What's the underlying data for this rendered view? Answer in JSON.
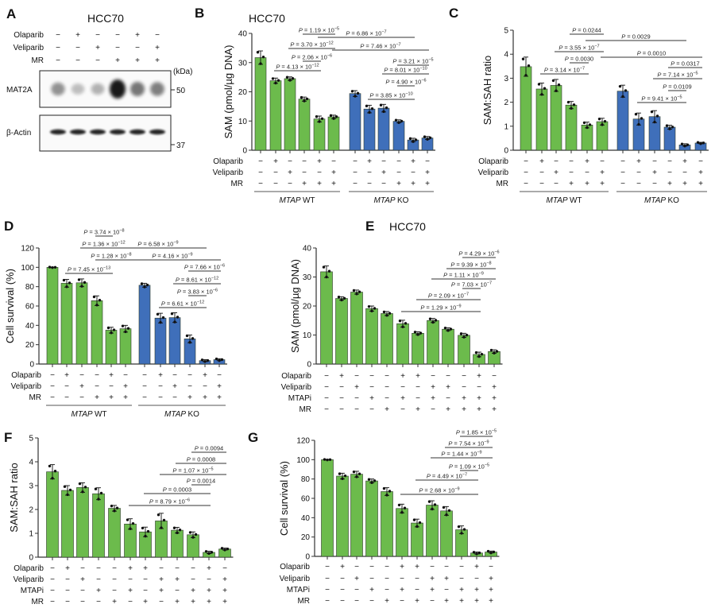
{
  "blot": {
    "panel": "A",
    "title": "HCC70",
    "rows": [
      {
        "label": "Olaparib",
        "values": [
          "−",
          "+",
          "−",
          "−",
          "+",
          "−"
        ]
      },
      {
        "label": "Veliparib",
        "values": [
          "−",
          "−",
          "+",
          "−",
          "−",
          "+"
        ]
      },
      {
        "label": "MR",
        "values": [
          "−",
          "−",
          "−",
          "+",
          "+",
          "+"
        ]
      }
    ],
    "unit": "(kDa)",
    "blots": [
      {
        "label": "MAT2A",
        "marker": "50"
      },
      {
        "label": "β-Actin",
        "marker": "37"
      }
    ]
  },
  "chart_data": [
    {
      "panel": "B",
      "type": "bar",
      "title": "HCC70",
      "ylabel": "SAM (pmol/µg DNA)",
      "ylim": [
        0,
        40
      ],
      "yticks": [
        "0",
        "10",
        "20",
        "30",
        "40"
      ],
      "p_symbol": "P",
      "colors": {
        "WT": "#6cbb4c",
        "KO": "#3f6fba"
      },
      "values": [
        31.7,
        23.8,
        24.5,
        17.5,
        10.7,
        11.4,
        19.4,
        14.1,
        14.4,
        9.9,
        3.5,
        4.2
      ],
      "sd": [
        2.3,
        0.9,
        0.6,
        0.7,
        1.0,
        0.6,
        1.0,
        1.3,
        1.3,
        0.5,
        0.6,
        0.5
      ],
      "series_of_bar": [
        "WT",
        "WT",
        "WT",
        "WT",
        "WT",
        "WT",
        "KO",
        "KO",
        "KO",
        "KO",
        "KO",
        "KO"
      ],
      "rows": [
        {
          "label": "Olaparib",
          "values": [
            "−",
            "+",
            "−",
            "−",
            "+",
            "−",
            "−",
            "+",
            "−",
            "−",
            "+",
            "−"
          ]
        },
        {
          "label": "Veliparib",
          "values": [
            "−",
            "−",
            "+",
            "−",
            "−",
            "+",
            "−",
            "−",
            "+",
            "−",
            "−",
            "+"
          ]
        },
        {
          "label": "MR",
          "values": [
            "−",
            "−",
            "−",
            "+",
            "+",
            "+",
            "−",
            "−",
            "−",
            "+",
            "+",
            "+"
          ]
        }
      ],
      "groups": [
        {
          "gene": "MTAP",
          "label": "WT",
          "from": 0,
          "to": 5
        },
        {
          "gene": "MTAP",
          "label": "KO",
          "from": 6,
          "to": 11
        }
      ],
      "comparisons": [
        {
          "from": 3,
          "to": 5,
          "value": "= 1.19 × 10",
          "exp": "−5"
        },
        {
          "from": 4,
          "to": 10,
          "value": "= 6.86 × 10",
          "exp": "−7"
        },
        {
          "from": 2,
          "to": 5,
          "value": "= 3.70 × 10",
          "exp": "−12"
        },
        {
          "from": 5,
          "to": 11,
          "value": "= 7.46 × 10",
          "exp": "−7"
        },
        {
          "from": 3,
          "to": 4,
          "value": "= 2.06 × 10",
          "exp": "−6"
        },
        {
          "from": 1,
          "to": 4,
          "value": "= 4.13 × 10",
          "exp": "−12"
        },
        {
          "from": 9,
          "to": 11,
          "value": "= 3.21 × 10",
          "exp": "−5"
        },
        {
          "from": 8,
          "to": 11,
          "value": "= 8.01 × 10",
          "exp": "−10"
        },
        {
          "from": 9,
          "to": 10,
          "value": "= 4.90 × 10",
          "exp": "−6"
        },
        {
          "from": 7,
          "to": 10,
          "value": "= 3.85 × 10",
          "exp": "−10"
        }
      ]
    },
    {
      "panel": "C",
      "type": "bar",
      "title": "",
      "ylabel": "SAM:SAH ratio",
      "ylim": [
        0,
        5
      ],
      "yticks": [
        "0",
        "1",
        "2",
        "3",
        "4",
        "5"
      ],
      "p_symbol": "P",
      "colors": {
        "WT": "#6cbb4c",
        "KO": "#3f6fba"
      },
      "values": [
        3.48,
        2.55,
        2.7,
        1.88,
        1.05,
        1.19,
        2.46,
        1.3,
        1.4,
        0.96,
        0.22,
        0.3
      ],
      "sd": [
        0.4,
        0.25,
        0.25,
        0.15,
        0.12,
        0.14,
        0.25,
        0.25,
        0.25,
        0.08,
        0.05,
        0.03
      ],
      "series_of_bar": [
        "WT",
        "WT",
        "WT",
        "WT",
        "WT",
        "WT",
        "KO",
        "KO",
        "KO",
        "KO",
        "KO",
        "KO"
      ],
      "rows": [
        {
          "label": "Olaparib",
          "values": [
            "−",
            "+",
            "−",
            "−",
            "+",
            "−",
            "−",
            "+",
            "−",
            "−",
            "+",
            "−"
          ]
        },
        {
          "label": "Veliparib",
          "values": [
            "−",
            "−",
            "+",
            "−",
            "−",
            "+",
            "−",
            "−",
            "+",
            "−",
            "−",
            "+"
          ]
        },
        {
          "label": "MR",
          "values": [
            "−",
            "−",
            "−",
            "+",
            "+",
            "+",
            "−",
            "−",
            "−",
            "+",
            "+",
            "+"
          ]
        }
      ],
      "groups": [
        {
          "gene": "MTAP",
          "label": "WT",
          "from": 0,
          "to": 5
        },
        {
          "gene": "MTAP",
          "label": "KO",
          "from": 6,
          "to": 11
        }
      ],
      "comparisons": [
        {
          "from": 3,
          "to": 5,
          "value": "= 0.0244",
          "exp": ""
        },
        {
          "from": 4,
          "to": 10,
          "value": "= 0.0029",
          "exp": ""
        },
        {
          "from": 2,
          "to": 5,
          "value": "= 3.55 × 10",
          "exp": "−7"
        },
        {
          "from": 5,
          "to": 11,
          "value": "= 0.0010",
          "exp": ""
        },
        {
          "from": 3,
          "to": 4,
          "value": "= 0.0030",
          "exp": ""
        },
        {
          "from": 1,
          "to": 4,
          "value": "= 3.14 × 10",
          "exp": "−7"
        },
        {
          "from": 9,
          "to": 11,
          "value": "= 0.0317",
          "exp": ""
        },
        {
          "from": 8,
          "to": 11,
          "value": "= 7.14 × 10",
          "exp": "−5"
        },
        {
          "from": 9,
          "to": 10,
          "value": "= 0.0109",
          "exp": ""
        },
        {
          "from": 7,
          "to": 10,
          "value": "= 9.41 × 10",
          "exp": "−5"
        }
      ]
    },
    {
      "panel": "D",
      "type": "bar",
      "title": "",
      "ylabel": "Cell survival (%)",
      "ylim": [
        0,
        120
      ],
      "yticks": [
        "0",
        "20",
        "40",
        "60",
        "80",
        "100",
        "120"
      ],
      "p_symbol": "P",
      "colors": {
        "WT": "#6cbb4c",
        "KO": "#3f6fba"
      },
      "values": [
        100,
        83.5,
        84,
        65.5,
        35,
        36.5,
        81.5,
        47.5,
        48,
        26,
        3.5,
        4.5
      ],
      "sd": [
        0.3,
        4,
        4,
        5,
        3,
        3.5,
        2,
        5,
        5,
        4,
        1,
        1
      ],
      "series_of_bar": [
        "WT",
        "WT",
        "WT",
        "WT",
        "WT",
        "WT",
        "KO",
        "KO",
        "KO",
        "KO",
        "KO",
        "KO"
      ],
      "rows": [
        {
          "label": "Olaparib",
          "values": [
            "−",
            "+",
            "−",
            "−",
            "+",
            "−",
            "−",
            "+",
            "−",
            "−",
            "+",
            "−"
          ]
        },
        {
          "label": "Veliparib",
          "values": [
            "−",
            "−",
            "+",
            "−",
            "−",
            "+",
            "−",
            "−",
            "+",
            "−",
            "−",
            "+"
          ]
        },
        {
          "label": "MR",
          "values": [
            "−",
            "−",
            "−",
            "+",
            "+",
            "+",
            "−",
            "−",
            "−",
            "+",
            "+",
            "+"
          ]
        }
      ],
      "groups": [
        {
          "gene": "MTAP",
          "label": "WT",
          "from": 0,
          "to": 5
        },
        {
          "gene": "MTAP",
          "label": "KO",
          "from": 6,
          "to": 11
        }
      ],
      "comparisons": [
        {
          "from": 3,
          "to": 4,
          "value": "= 3.74 × 10",
          "exp": "−8"
        },
        {
          "from": 2,
          "to": 5,
          "value": "= 1.36 × 10",
          "exp": "−12"
        },
        {
          "from": 4,
          "to": 10,
          "value": "= 6.58 × 10",
          "exp": "−9"
        },
        {
          "from": 3,
          "to": 5,
          "value": "= 1.28 × 10",
          "exp": "−8"
        },
        {
          "from": 5,
          "to": 11,
          "value": "= 4.16 × 10",
          "exp": "−9"
        },
        {
          "from": 1,
          "to": 4,
          "value": "= 7.45 × 10",
          "exp": "−13"
        },
        {
          "from": 9,
          "to": 11,
          "value": "= 7.66 × 10",
          "exp": "−6"
        },
        {
          "from": 8,
          "to": 11,
          "value": "= 8.61 × 10",
          "exp": "−12"
        },
        {
          "from": 9,
          "to": 10,
          "value": "= 3.83 × 10",
          "exp": "−6"
        },
        {
          "from": 7,
          "to": 10,
          "value": "= 6.61 × 10",
          "exp": "−12"
        }
      ]
    },
    {
      "panel": "E",
      "type": "bar",
      "title": "HCC70",
      "ylabel": "SAM (pmol/µg DNA)",
      "ylim": [
        0,
        40
      ],
      "yticks": [
        "0",
        "10",
        "20",
        "30",
        "40"
      ],
      "p_symbol": "P",
      "colors": {
        "bar": "#6cbb4c"
      },
      "values": [
        31.8,
        22.6,
        24.8,
        19.1,
        17.4,
        13.9,
        10.6,
        15.0,
        12.0,
        9.9,
        3.3,
        4.3
      ],
      "sd": [
        2.0,
        0.6,
        0.7,
        0.9,
        0.7,
        1.2,
        0.5,
        0.7,
        0.5,
        0.7,
        0.8,
        0.6
      ],
      "rows": [
        {
          "label": "Olaparib",
          "values": [
            "−",
            "+",
            "−",
            "−",
            "−",
            "+",
            "+",
            "−",
            "−",
            "−",
            "+",
            "−"
          ]
        },
        {
          "label": "Veliparib",
          "values": [
            "−",
            "−",
            "+",
            "−",
            "−",
            "−",
            "−",
            "+",
            "+",
            "−",
            "−",
            "+"
          ]
        },
        {
          "label": "MTAPi",
          "values": [
            "−",
            "−",
            "−",
            "+",
            "−",
            "+",
            "−",
            "+",
            "−",
            "+",
            "+",
            "+"
          ]
        },
        {
          "label": "MR",
          "values": [
            "−",
            "−",
            "−",
            "−",
            "+",
            "−",
            "+",
            "−",
            "+",
            "+",
            "+",
            "+"
          ]
        }
      ],
      "groups": [],
      "comparisons": [
        {
          "from": 9,
          "to": 11,
          "value": "= 4.29 × 10",
          "exp": "−6"
        },
        {
          "from": 8,
          "to": 11,
          "value": "= 9.39 × 10",
          "exp": "−8"
        },
        {
          "from": 7,
          "to": 11,
          "value": "= 1.11 × 10",
          "exp": "−9"
        },
        {
          "from": 9,
          "to": 10,
          "value": "= 7.03 × 10",
          "exp": "−7"
        },
        {
          "from": 6,
          "to": 10,
          "value": "= 2.09 × 10",
          "exp": "−7"
        },
        {
          "from": 5,
          "to": 10,
          "value": "= 1.29 × 10",
          "exp": "−9"
        }
      ]
    },
    {
      "panel": "F",
      "type": "bar",
      "title": "",
      "ylabel": "SAM:SAH ratio",
      "ylim": [
        0,
        5
      ],
      "yticks": [
        "0",
        "1",
        "2",
        "3",
        "4",
        "5"
      ],
      "p_symbol": "P",
      "colors": {
        "bar": "#6cbb4c"
      },
      "values": [
        3.58,
        2.8,
        2.92,
        2.66,
        2.05,
        1.39,
        1.06,
        1.52,
        1.13,
        0.94,
        0.2,
        0.34
      ],
      "sd": [
        0.3,
        0.2,
        0.2,
        0.25,
        0.12,
        0.22,
        0.2,
        0.32,
        0.12,
        0.12,
        0.05,
        0.04
      ],
      "rows": [
        {
          "label": "Olaparib",
          "values": [
            "−",
            "+",
            "−",
            "−",
            "−",
            "+",
            "+",
            "−",
            "−",
            "−",
            "+",
            "−"
          ]
        },
        {
          "label": "Veliparib",
          "values": [
            "−",
            "−",
            "+",
            "−",
            "−",
            "−",
            "−",
            "+",
            "+",
            "−",
            "−",
            "+"
          ]
        },
        {
          "label": "MTAPi",
          "values": [
            "−",
            "−",
            "−",
            "+",
            "−",
            "+",
            "−",
            "+",
            "−",
            "+",
            "+",
            "+"
          ]
        },
        {
          "label": "MR",
          "values": [
            "−",
            "−",
            "−",
            "−",
            "+",
            "−",
            "+",
            "−",
            "+",
            "+",
            "+",
            "+"
          ]
        }
      ],
      "groups": [],
      "comparisons": [
        {
          "from": 9,
          "to": 11,
          "value": "= 0.0094",
          "exp": ""
        },
        {
          "from": 8,
          "to": 11,
          "value": "= 0.0008",
          "exp": ""
        },
        {
          "from": 7,
          "to": 11,
          "value": "= 1.07 × 10",
          "exp": "−5"
        },
        {
          "from": 9,
          "to": 10,
          "value": "= 0.0014",
          "exp": ""
        },
        {
          "from": 6,
          "to": 10,
          "value": "= 0.0003",
          "exp": ""
        },
        {
          "from": 5,
          "to": 10,
          "value": "= 8.79 × 10",
          "exp": "−6"
        }
      ]
    },
    {
      "panel": "G",
      "type": "bar",
      "title": "",
      "ylabel": "Cell survival (%)",
      "ylim": [
        0,
        120
      ],
      "yticks": [
        "0",
        "20",
        "40",
        "60",
        "80",
        "100",
        "120"
      ],
      "p_symbol": "P",
      "colors": {
        "bar": "#6cbb4c"
      },
      "values": [
        100,
        83,
        85,
        78,
        67,
        49.5,
        34.5,
        53,
        47,
        27.5,
        3.5,
        4.5
      ],
      "sd": [
        0.3,
        3,
        3,
        2,
        4,
        4.5,
        4,
        4.5,
        4.5,
        4,
        1,
        1
      ],
      "rows": [
        {
          "label": "Olaparib",
          "values": [
            "−",
            "+",
            "−",
            "−",
            "−",
            "+",
            "+",
            "−",
            "−",
            "−",
            "+",
            "−"
          ]
        },
        {
          "label": "Veliparib",
          "values": [
            "−",
            "−",
            "+",
            "−",
            "−",
            "−",
            "−",
            "+",
            "+",
            "−",
            "−",
            "+"
          ]
        },
        {
          "label": "MTAPi",
          "values": [
            "−",
            "−",
            "−",
            "+",
            "−",
            "+",
            "−",
            "+",
            "−",
            "+",
            "+",
            "+"
          ]
        },
        {
          "label": "MR",
          "values": [
            "−",
            "−",
            "−",
            "−",
            "+",
            "−",
            "+",
            "−",
            "+",
            "+",
            "+",
            "+"
          ]
        }
      ],
      "groups": [],
      "comparisons": [
        {
          "from": 9,
          "to": 11,
          "value": "= 1.85 × 10",
          "exp": "−5"
        },
        {
          "from": 8,
          "to": 11,
          "value": "= 7.54 × 10",
          "exp": "−9"
        },
        {
          "from": 7,
          "to": 11,
          "value": "= 1.44 × 10",
          "exp": "−9"
        },
        {
          "from": 9,
          "to": 10,
          "value": "= 1.09 × 10",
          "exp": "−5"
        },
        {
          "from": 6,
          "to": 10,
          "value": "= 4.49 × 10",
          "exp": "−7"
        },
        {
          "from": 5,
          "to": 10,
          "value": "= 2.68 × 10",
          "exp": "−9"
        }
      ]
    }
  ]
}
